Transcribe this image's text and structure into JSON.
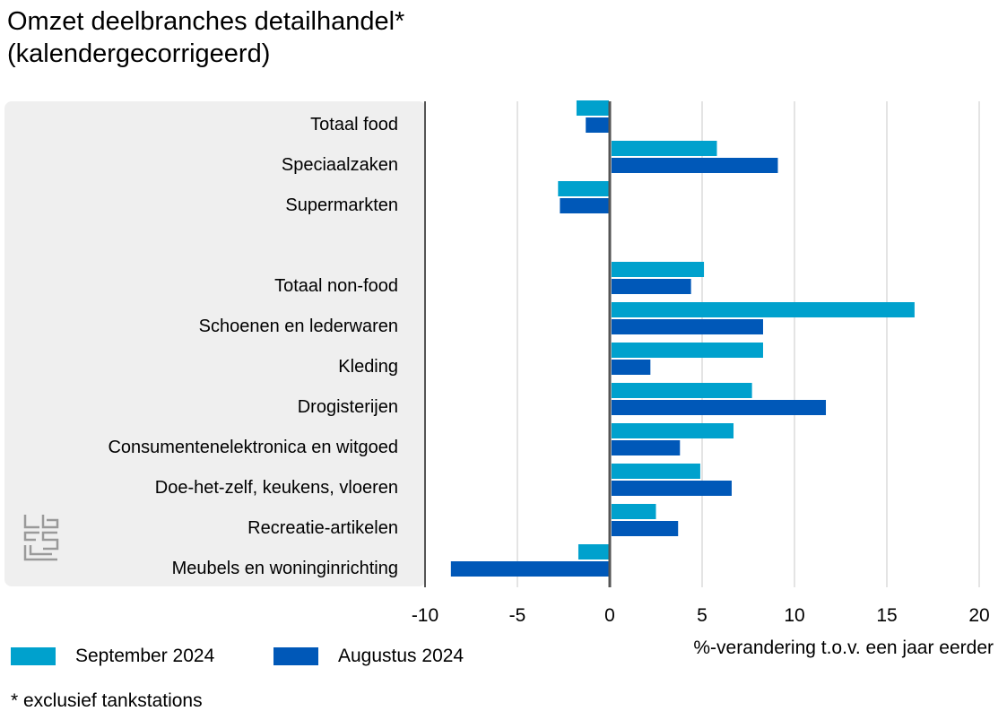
{
  "title_line1": "Omzet deelbranches detailhandel*",
  "title_line2": "(kalendergecorrigeerd)",
  "footnote": "* exclusief tankstations",
  "x_axis_label": "%-verandering t.o.v. een jaar eerder",
  "colors": {
    "september": "#00a1cd",
    "augustus": "#0058b8",
    "panel": "#efefef",
    "grid": "#c8c8c8",
    "axis": "#555555"
  },
  "chart_data": {
    "type": "bar",
    "orientation": "horizontal",
    "categories": [
      "Totaal food",
      "Speciaalzaken",
      "Supermarkten",
      "",
      "Totaal non-food",
      "Schoenen en lederwaren",
      "Kleding",
      "Drogisterijen",
      "Consumentenelektronica en witgoed",
      "Doe-het-zelf, keukens, vloeren",
      "Recreatie-artikelen",
      "Meubels en woninginrichting"
    ],
    "series": [
      {
        "name": "September 2024",
        "values": [
          -1.8,
          5.8,
          -2.8,
          null,
          5.1,
          16.5,
          8.3,
          7.7,
          6.7,
          4.9,
          2.5,
          -1.7
        ]
      },
      {
        "name": "Augustus 2024",
        "values": [
          -1.3,
          9.1,
          -2.7,
          null,
          4.4,
          8.3,
          2.2,
          11.7,
          3.8,
          6.6,
          3.7,
          -8.6
        ]
      }
    ],
    "x_ticks": [
      "-10",
      "-5",
      "0",
      "5",
      "10",
      "15",
      "20"
    ],
    "xlim": [
      -10,
      20
    ],
    "grid": true,
    "legend_position": "bottom-left"
  }
}
